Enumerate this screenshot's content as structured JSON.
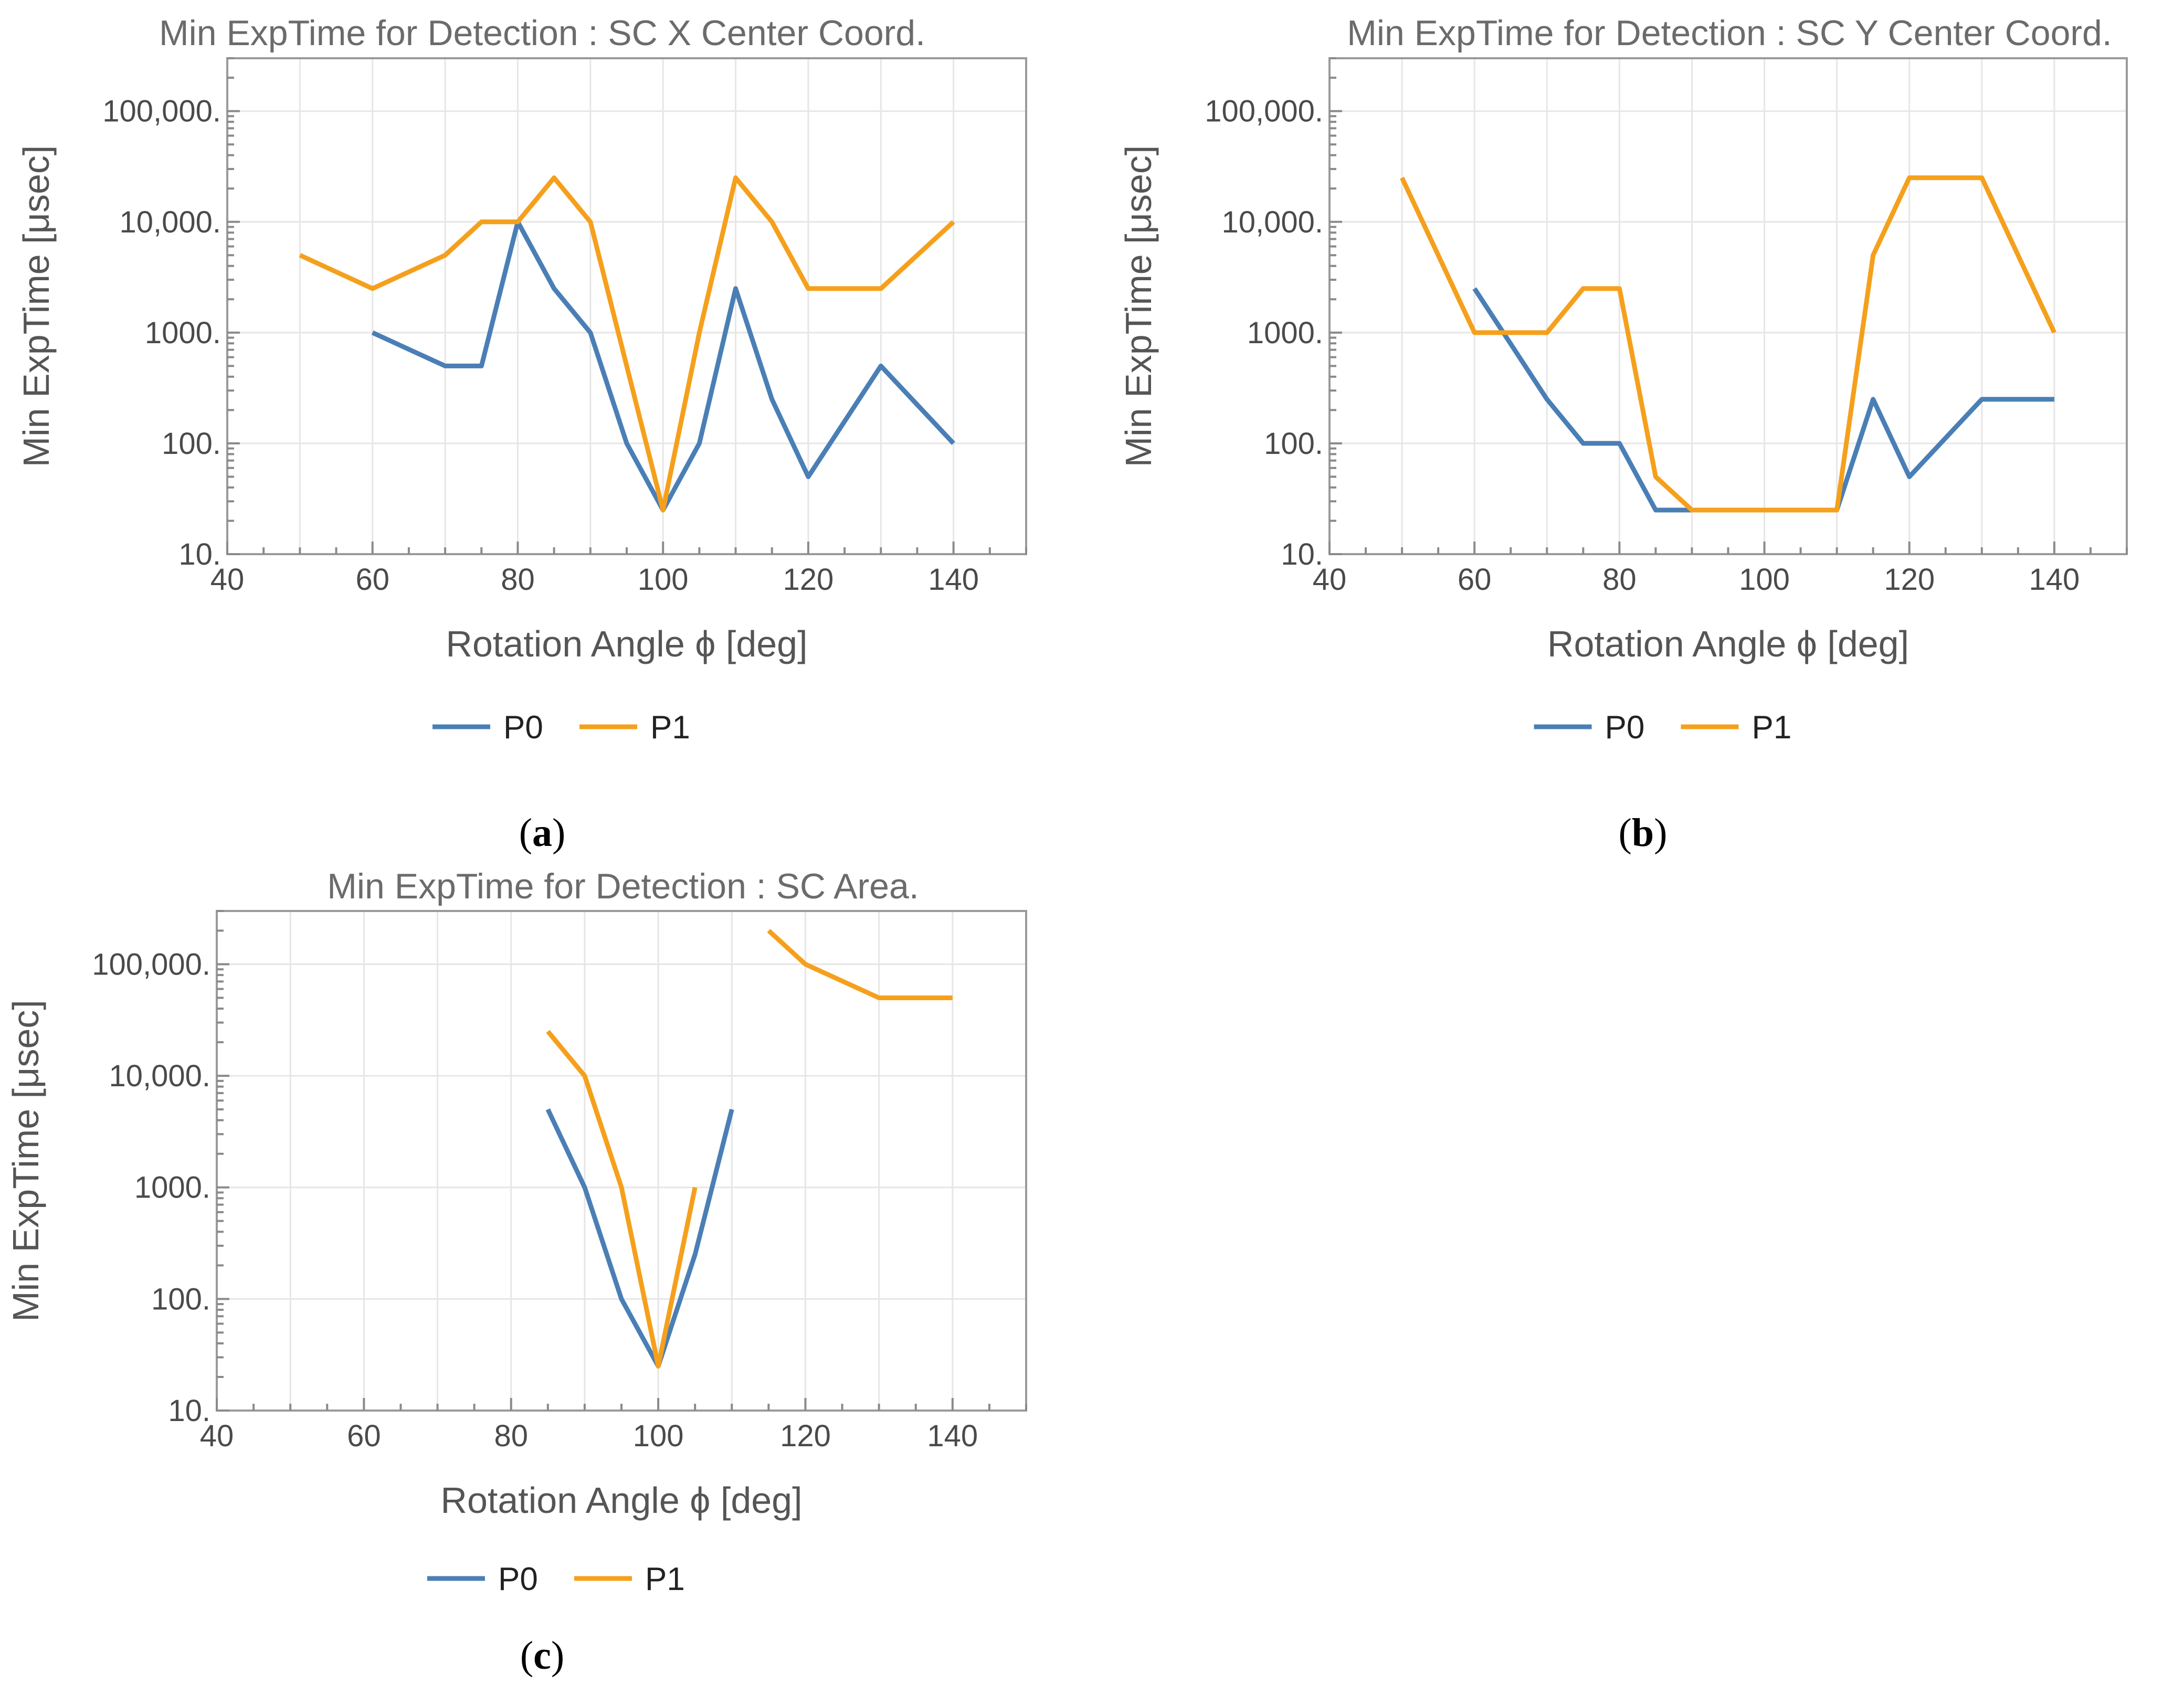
{
  "colors": {
    "P0": "#4a7fb5",
    "P1": "#f5a01c"
  },
  "chart_data": [
    {
      "type": "line",
      "title": "Min ExpTime for Detection : SC X Center Coord.",
      "xlabel": "Rotation Angle ϕ [deg]",
      "ylabel": "Min ExpTime [μsec]",
      "xlim": [
        40,
        150
      ],
      "ylim": [
        10,
        300000
      ],
      "yscale": "log",
      "x_ticks": [
        40,
        60,
        80,
        100,
        120,
        140
      ],
      "y_ticks": [
        {
          "value": 10,
          "label": "10."
        },
        {
          "value": 100,
          "label": "100."
        },
        {
          "value": 1000,
          "label": "1000."
        },
        {
          "value": 10000,
          "label": "10,000."
        },
        {
          "value": 100000,
          "label": "100,000."
        }
      ],
      "legend": [
        "P0",
        "P1"
      ],
      "caption": "a",
      "series": [
        {
          "name": "P0",
          "x": [
            60,
            70,
            75,
            80,
            85,
            90,
            95,
            100,
            105,
            110,
            115,
            120,
            130,
            140
          ],
          "y": [
            1000,
            500,
            500,
            10000,
            2500,
            1000,
            100,
            25,
            100,
            2500,
            250,
            50,
            500,
            100
          ]
        },
        {
          "name": "P1",
          "x": [
            50,
            60,
            70,
            75,
            80,
            85,
            90,
            100,
            105,
            110,
            115,
            120,
            130,
            140
          ],
          "y": [
            5000,
            2500,
            5000,
            10000,
            10000,
            25000,
            10000,
            25,
            1000,
            25000,
            10000,
            2500,
            2500,
            10000
          ]
        }
      ]
    },
    {
      "type": "line",
      "title": "Min ExpTime for Detection : SC Y Center Coord.",
      "xlabel": "Rotation Angle ϕ [deg]",
      "ylabel": "Min ExpTime [μsec]",
      "xlim": [
        40,
        150
      ],
      "ylim": [
        10,
        300000
      ],
      "yscale": "log",
      "x_ticks": [
        40,
        60,
        80,
        100,
        120,
        140
      ],
      "y_ticks": [
        {
          "value": 10,
          "label": "10."
        },
        {
          "value": 100,
          "label": "100."
        },
        {
          "value": 1000,
          "label": "1000."
        },
        {
          "value": 10000,
          "label": "10,000."
        },
        {
          "value": 100000,
          "label": "100,000."
        }
      ],
      "legend": [
        "P0",
        "P1"
      ],
      "caption": "b",
      "series": [
        {
          "name": "P0",
          "x": [
            60,
            70,
            75,
            80,
            85,
            90,
            100,
            110,
            115,
            120,
            130,
            140
          ],
          "y": [
            2500,
            250,
            100,
            100,
            25,
            25,
            25,
            25,
            250,
            50,
            250,
            250
          ]
        },
        {
          "name": "P1",
          "x": [
            50,
            60,
            70,
            75,
            80,
            85,
            90,
            100,
            110,
            115,
            120,
            130,
            140
          ],
          "y": [
            25000,
            1000,
            1000,
            2500,
            2500,
            50,
            25,
            25,
            25,
            5000,
            25000,
            25000,
            1000
          ]
        }
      ]
    },
    {
      "type": "line",
      "title": "Min ExpTime for Detection : SC Area.",
      "xlabel": "Rotation Angle ϕ [deg]",
      "ylabel": "Min ExpTime [μsec]",
      "xlim": [
        40,
        150
      ],
      "ylim": [
        10,
        300000
      ],
      "yscale": "log",
      "x_ticks": [
        40,
        60,
        80,
        100,
        120,
        140
      ],
      "y_ticks": [
        {
          "value": 10,
          "label": "10."
        },
        {
          "value": 100,
          "label": "100."
        },
        {
          "value": 1000,
          "label": "1000."
        },
        {
          "value": 10000,
          "label": "10,000."
        },
        {
          "value": 100000,
          "label": "100,000."
        }
      ],
      "legend": [
        "P0",
        "P1"
      ],
      "caption": "c",
      "series": [
        {
          "name": "P0",
          "segments": [
            {
              "x": [
                85,
                90,
                95,
                100,
                105,
                110
              ],
              "y": [
                5000,
                1000,
                100,
                25,
                250,
                5000
              ]
            }
          ]
        },
        {
          "name": "P1",
          "segments": [
            {
              "x": [
                85,
                90,
                95,
                100,
                105
              ],
              "y": [
                25000,
                10000,
                1000,
                25,
                1000
              ]
            },
            {
              "x": [
                115,
                120,
                130,
                140
              ],
              "y": [
                200000,
                100000,
                50000,
                50000
              ]
            }
          ]
        }
      ]
    }
  ]
}
